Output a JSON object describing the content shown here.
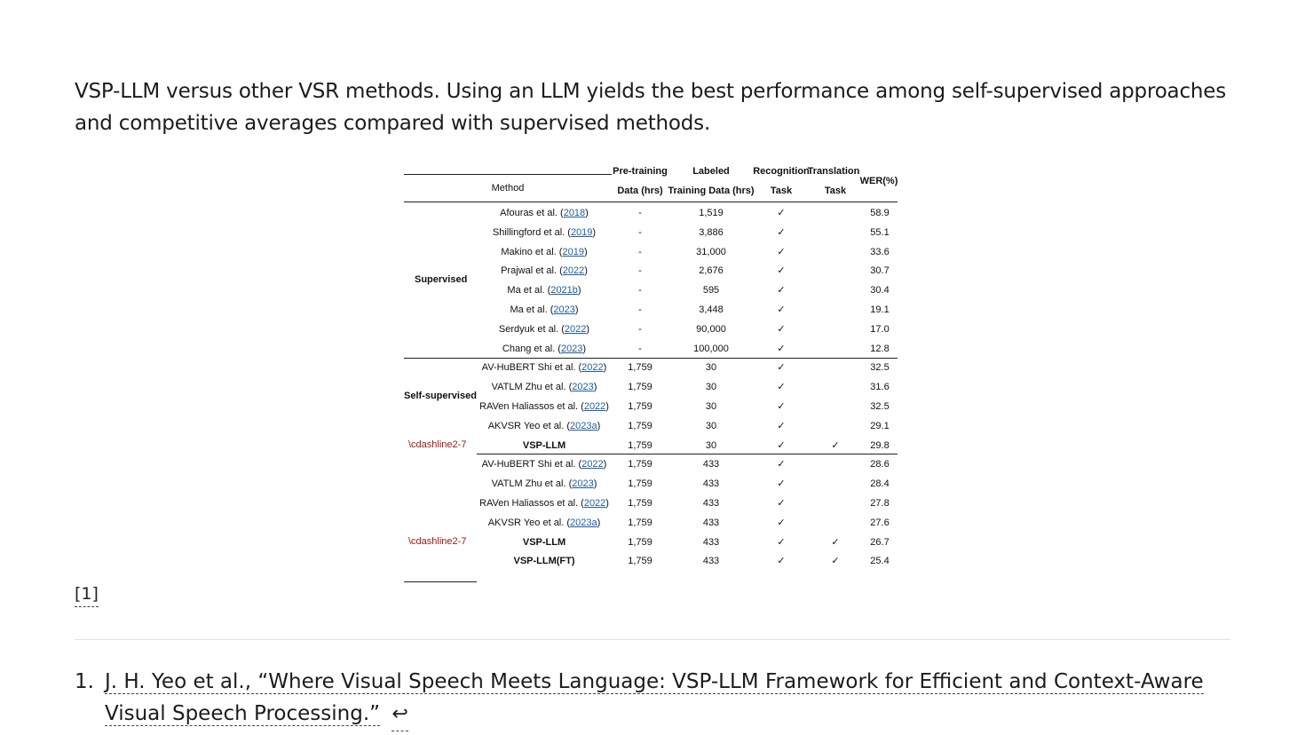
{
  "caption": "VSP-LLM versus other VSR methods. Using an LLM yields the best performance among self-supervised approaches and competitive averages compared with supervised methods.",
  "table": {
    "headers": {
      "method": "Method",
      "pretrain_1": "Pre-training",
      "pretrain_2": "Data (hrs)",
      "labeled_1": "Labeled",
      "labeled_2": "Training Data (hrs)",
      "recog_1": "Recognition",
      "recog_2": "Task",
      "trans_1": "Translation",
      "trans_2": "Task",
      "wer": "WER(%)"
    },
    "groups": {
      "supervised": "Supervised",
      "self_supervised": "Self-supervised",
      "dash_1": "\\cdashline2-7",
      "dash_2": "\\cdashline2-7"
    },
    "rows": [
      {
        "m": "Afouras et al. (",
        "y": "2018",
        "e": ")",
        "pre": "-",
        "lab": "1,519",
        "rec": "✓",
        "tr": "",
        "wer": "58.9"
      },
      {
        "m": "Shillingford et al. (",
        "y": "2019",
        "e": ")",
        "pre": "-",
        "lab": "3,886",
        "rec": "✓",
        "tr": "",
        "wer": "55.1"
      },
      {
        "m": "Makino et al. (",
        "y": "2019",
        "e": ")",
        "pre": "-",
        "lab": "31,000",
        "rec": "✓",
        "tr": "",
        "wer": "33.6"
      },
      {
        "m": "Prajwal et al. (",
        "y": "2022",
        "e": ")",
        "pre": "-",
        "lab": "2,676",
        "rec": "✓",
        "tr": "",
        "wer": "30.7"
      },
      {
        "m": "Ma et al. (",
        "y": "2021b",
        "e": ")",
        "pre": "-",
        "lab": "595",
        "rec": "✓",
        "tr": "",
        "wer": "30.4"
      },
      {
        "m": "Ma et al. (",
        "y": "2023",
        "e": ")",
        "pre": "-",
        "lab": "3,448",
        "rec": "✓",
        "tr": "",
        "wer": "19.1"
      },
      {
        "m": "Serdyuk et al. (",
        "y": "2022",
        "e": ")",
        "pre": "-",
        "lab": "90,000",
        "rec": "✓",
        "tr": "",
        "wer": "17.0"
      },
      {
        "m": "Chang et al. (",
        "y": "2023",
        "e": ")",
        "pre": "-",
        "lab": "100,000",
        "rec": "✓",
        "tr": "",
        "wer": "12.8"
      },
      {
        "m": "AV-HuBERT Shi et al. (",
        "y": "2022",
        "e": ")",
        "pre": "1,759",
        "lab": "30",
        "rec": "✓",
        "tr": "",
        "wer": "32.5"
      },
      {
        "m": "VATLM Zhu et al. (",
        "y": "2023",
        "e": ")",
        "pre": "1,759",
        "lab": "30",
        "rec": "✓",
        "tr": "",
        "wer": "31.6"
      },
      {
        "m": "RAVen Haliassos et al. (",
        "y": "2022",
        "e": ")",
        "pre": "1,759",
        "lab": "30",
        "rec": "✓",
        "tr": "",
        "wer": "32.5"
      },
      {
        "m": "AKVSR Yeo et al. (",
        "y": "2023a",
        "e": ")",
        "pre": "1,759",
        "lab": "30",
        "rec": "✓",
        "tr": "",
        "wer": "29.1"
      },
      {
        "m": "VSP-LLM",
        "y": "",
        "e": "",
        "pre": "1,759",
        "lab": "30",
        "rec": "✓",
        "tr": "✓",
        "wer": "29.8"
      },
      {
        "m": "AV-HuBERT Shi et al. (",
        "y": "2022",
        "e": ")",
        "pre": "1,759",
        "lab": "433",
        "rec": "✓",
        "tr": "",
        "wer": "28.6"
      },
      {
        "m": "VATLM Zhu et al. (",
        "y": "2023",
        "e": ")",
        "pre": "1,759",
        "lab": "433",
        "rec": "✓",
        "tr": "",
        "wer": "28.4"
      },
      {
        "m": "RAVen Haliassos et al. (",
        "y": "2022",
        "e": ")",
        "pre": "1,759",
        "lab": "433",
        "rec": "✓",
        "tr": "",
        "wer": "27.8"
      },
      {
        "m": "AKVSR Yeo et al. (",
        "y": "2023a",
        "e": ")",
        "pre": "1,759",
        "lab": "433",
        "rec": "✓",
        "tr": "",
        "wer": "27.6"
      },
      {
        "m": "VSP-LLM",
        "y": "",
        "e": "",
        "pre": "1,759",
        "lab": "433",
        "rec": "✓",
        "tr": "✓",
        "wer": "26.7"
      },
      {
        "m": "VSP-LLM(FT)",
        "y": "",
        "e": "",
        "pre": "1,759",
        "lab": "433",
        "rec": "✓",
        "tr": "✓",
        "wer": "25.4"
      }
    ]
  },
  "footnote_ref": "[1]",
  "footnote": {
    "number": "1.",
    "text": "J. H. Yeo et al., “Where Visual Speech Meets Language: VSP-LLM Framework for Efficient and Context-Aware Visual Speech Processing.”",
    "back": "↩"
  }
}
